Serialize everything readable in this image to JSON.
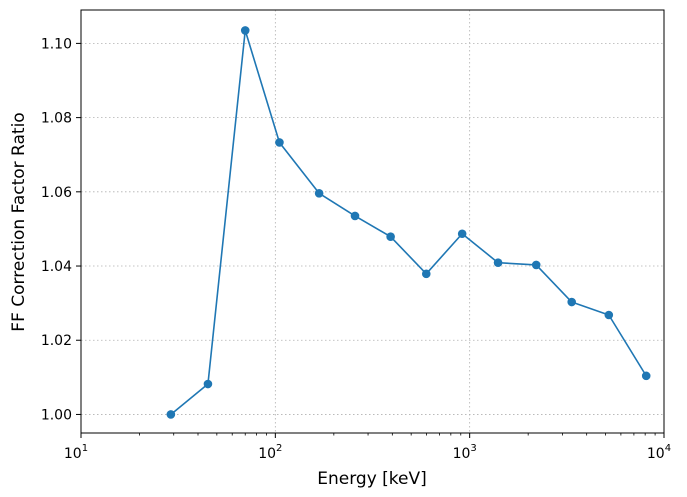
{
  "chart_data": {
    "type": "line",
    "title": "",
    "xlabel": "Energy [keV]",
    "ylabel": "FF Correction Factor Ratio",
    "xscale": "log",
    "xlim": [
      10,
      10000
    ],
    "ylim": [
      0.995,
      1.109
    ],
    "grid": true,
    "color": "#1f77b4",
    "x_ticks": [
      {
        "value": 10,
        "base": "10",
        "exp": "1"
      },
      {
        "value": 100,
        "base": "10",
        "exp": "2"
      },
      {
        "value": 1000,
        "base": "10",
        "exp": "3"
      },
      {
        "value": 10000,
        "base": "10",
        "exp": "4"
      }
    ],
    "y_ticks": [
      {
        "value": 1.0,
        "label": "1.00"
      },
      {
        "value": 1.02,
        "label": "1.02"
      },
      {
        "value": 1.04,
        "label": "1.04"
      },
      {
        "value": 1.06,
        "label": "1.06"
      },
      {
        "value": 1.08,
        "label": "1.08"
      },
      {
        "value": 1.1,
        "label": "1.10"
      }
    ],
    "series": [
      {
        "x": [
          29,
          45,
          70,
          105,
          168,
          257,
          392,
          598,
          915,
          1400,
          2200,
          3350,
          5200,
          8100
        ],
        "y": [
          1.0,
          1.0082,
          1.1035,
          1.0733,
          1.0596,
          1.0535,
          1.0479,
          1.0379,
          1.0487,
          1.0409,
          1.0403,
          1.0303,
          1.0268,
          1.0104
        ]
      }
    ]
  }
}
